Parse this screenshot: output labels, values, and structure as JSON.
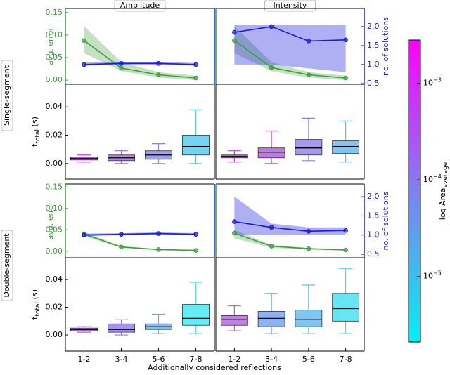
{
  "figure": {
    "column_titles": [
      "Amplitude",
      "Intensity"
    ],
    "row_labels": [
      "Single-segment",
      "Double-segment"
    ],
    "xlabel": "Additionally considered reflections",
    "colorbar": {
      "label": "log Area",
      "label_sub": "average",
      "scale": "log",
      "clim": [
        2.1e-06,
        0.0028
      ],
      "colors": [
        "#00f0f0",
        "#8080f0",
        "#ff00ff"
      ],
      "ticks": [
        {
          "value": 0.001,
          "label": "10−3"
        },
        {
          "value": 0.0001,
          "label": "10−4"
        },
        {
          "value": 1e-05,
          "label": "10−5"
        }
      ]
    }
  },
  "chart_data": [
    {
      "type": "line",
      "ylim": [
        -0.009,
        0.159
      ],
      "yticks": [
        {
          "value": 0,
          "label": "0.00"
        },
        {
          "value": 0.05,
          "label": "0.05"
        },
        {
          "value": 0.1,
          "label": "0.10"
        },
        {
          "value": 0.15,
          "label": "0.15"
        }
      ],
      "ylabel": "avg. error",
      "y2lim": [
        0.48,
        2.48
      ],
      "series": [
        {
          "name": "avg. error",
          "color": "#3c9c3c",
          "values": [
            0.088,
            0.027,
            0.012,
            0.005
          ],
          "upper": [
            0.12,
            0.04,
            0.018,
            0.01
          ],
          "lower": [
            0.06,
            0.02,
            0.006,
            0.0
          ]
        },
        {
          "name": "no. of solutions",
          "axis": "y2",
          "color": "#1a1adc",
          "values": [
            1.0,
            1.03,
            1.03,
            1.0
          ],
          "upper": [
            1.05,
            1.07,
            1.07,
            1.04
          ],
          "lower": [
            0.97,
            1.0,
            1.0,
            0.97
          ]
        }
      ]
    },
    {
      "type": "line",
      "ylim": [
        -0.009,
        0.159
      ],
      "y2lim": [
        0.48,
        2.48
      ],
      "y2ticks": [
        {
          "value": 0.5,
          "label": "0.5"
        },
        {
          "value": 1,
          "label": "1.0"
        },
        {
          "value": 1.5,
          "label": "1.5"
        },
        {
          "value": 2,
          "label": "2.0"
        }
      ],
      "y2label": "no. of solutions",
      "series": [
        {
          "name": "avg. error",
          "color": "#3c9c3c",
          "values": [
            0.088,
            0.028,
            0.012,
            0.005
          ],
          "upper": [
            0.12,
            0.04,
            0.018,
            0.01
          ],
          "lower": [
            0.06,
            0.02,
            0.006,
            0.0
          ]
        },
        {
          "name": "no. of solutions",
          "axis": "y2",
          "color": "#1a1adc",
          "values": [
            1.85,
            2.0,
            1.62,
            1.65
          ],
          "upper": [
            2.05,
            2.05,
            2.05,
            2.05
          ],
          "lower": [
            1.0,
            1.0,
            0.9,
            0.8
          ]
        }
      ]
    },
    {
      "type": "box",
      "ylim": [
        -0.011,
        0.056
      ],
      "yticks": [
        {
          "value": 0,
          "label": "0.00"
        },
        {
          "value": 0.02,
          "label": "0.02"
        },
        {
          "value": 0.04,
          "label": "0.04"
        }
      ],
      "ylabel": "t",
      "ylabel_sub": "total",
      "ylabel_unit": " (s)",
      "stats": [
        [
          0.001,
          0.0025,
          0.0035,
          0.0045,
          0.006
        ],
        [
          0.0,
          0.002,
          0.004,
          0.006,
          0.009
        ],
        [
          0.0,
          0.003,
          0.006,
          0.009,
          0.014
        ],
        [
          0.0,
          0.006,
          0.012,
          0.02,
          0.038
        ]
      ],
      "colors": [
        "#c040e0",
        "#a068e0",
        "#8888e8",
        "#50c8f0"
      ]
    },
    {
      "type": "box",
      "ylim": [
        -0.011,
        0.056
      ],
      "stats": [
        [
          0.001,
          0.004,
          0.005,
          0.006,
          0.009
        ],
        [
          0.0,
          0.004,
          0.008,
          0.011,
          0.023
        ],
        [
          0.002,
          0.006,
          0.011,
          0.017,
          0.032
        ],
        [
          0.001,
          0.007,
          0.012,
          0.016,
          0.03
        ]
      ],
      "colors": [
        "#c040e0",
        "#b058e0",
        "#9080e8",
        "#60b8f0"
      ]
    },
    {
      "type": "line",
      "ylim": [
        -0.015,
        0.157
      ],
      "yticks": [
        {
          "value": 0,
          "label": "0.00"
        },
        {
          "value": 0.05,
          "label": "0.05"
        },
        {
          "value": 0.1,
          "label": "0.10"
        },
        {
          "value": 0.15,
          "label": "0.15"
        }
      ],
      "ylabel": "avg. error",
      "y2lim": [
        0.41,
        2.33
      ],
      "series": [
        {
          "name": "avg. error",
          "color": "#3c9c3c",
          "values": [
            0.04,
            0.01,
            0.004,
            0.002
          ],
          "upper": [
            0.045,
            0.012,
            0.005,
            0.003
          ],
          "lower": [
            0.035,
            0.008,
            0.003,
            0.001
          ]
        },
        {
          "name": "no. of solutions",
          "axis": "y2",
          "color": "#1a1adc",
          "values": [
            1.0,
            1.02,
            1.04,
            1.02
          ],
          "upper": [
            1.04,
            1.05,
            1.07,
            1.05
          ],
          "lower": [
            0.97,
            1.0,
            1.01,
            1.0
          ]
        }
      ]
    },
    {
      "type": "line",
      "ylim": [
        -0.015,
        0.157
      ],
      "y2lim": [
        0.41,
        2.33
      ],
      "y2ticks": [
        {
          "value": 0.5,
          "label": "0.5"
        },
        {
          "value": 1,
          "label": "1.0"
        },
        {
          "value": 1.5,
          "label": "1.5"
        },
        {
          "value": 2,
          "label": "2.0"
        }
      ],
      "y2label": "no. of solutions",
      "series": [
        {
          "name": "avg. error",
          "color": "#3c9c3c",
          "values": [
            0.042,
            0.012,
            0.006,
            0.003
          ],
          "upper": [
            0.05,
            0.015,
            0.008,
            0.004
          ],
          "lower": [
            0.03,
            0.008,
            0.004,
            0.002
          ]
        },
        {
          "name": "no. of solutions",
          "axis": "y2",
          "color": "#1a1adc",
          "values": [
            1.35,
            1.2,
            1.1,
            1.12
          ],
          "upper": [
            2.0,
            1.3,
            1.2,
            1.2
          ],
          "lower": [
            1.0,
            1.0,
            1.0,
            1.0
          ]
        }
      ]
    },
    {
      "type": "box",
      "ylim": [
        -0.0116,
        0.0557
      ],
      "yticks": [
        {
          "value": 0,
          "label": "0.00"
        },
        {
          "value": 0.02,
          "label": "0.02"
        },
        {
          "value": 0.04,
          "label": "0.04"
        }
      ],
      "ylabel": "t",
      "ylabel_sub": "total",
      "ylabel_unit": " (s)",
      "categories": [
        "1-2",
        "3-4",
        "5-6",
        "7-8"
      ],
      "stats": [
        [
          0.002,
          0.003,
          0.004,
          0.005,
          0.006
        ],
        [
          0.0,
          0.002,
          0.004,
          0.008,
          0.011
        ],
        [
          0.001,
          0.004,
          0.006,
          0.008,
          0.015
        ],
        [
          0.001,
          0.007,
          0.012,
          0.022,
          0.038
        ]
      ],
      "colors": [
        "#b850e0",
        "#9078e8",
        "#60b0f0",
        "#40e8f0"
      ]
    },
    {
      "type": "box",
      "ylim": [
        -0.0116,
        0.0557
      ],
      "categories": [
        "1-2",
        "3-4",
        "5-6",
        "7-8"
      ],
      "stats": [
        [
          0.003,
          0.007,
          0.011,
          0.014,
          0.021
        ],
        [
          0.001,
          0.006,
          0.012,
          0.017,
          0.03
        ],
        [
          0.001,
          0.006,
          0.011,
          0.018,
          0.036
        ],
        [
          0.001,
          0.01,
          0.019,
          0.03,
          0.048
        ]
      ],
      "colors": [
        "#b060e0",
        "#70a0f0",
        "#60b8f0",
        "#40e0f0"
      ]
    }
  ]
}
